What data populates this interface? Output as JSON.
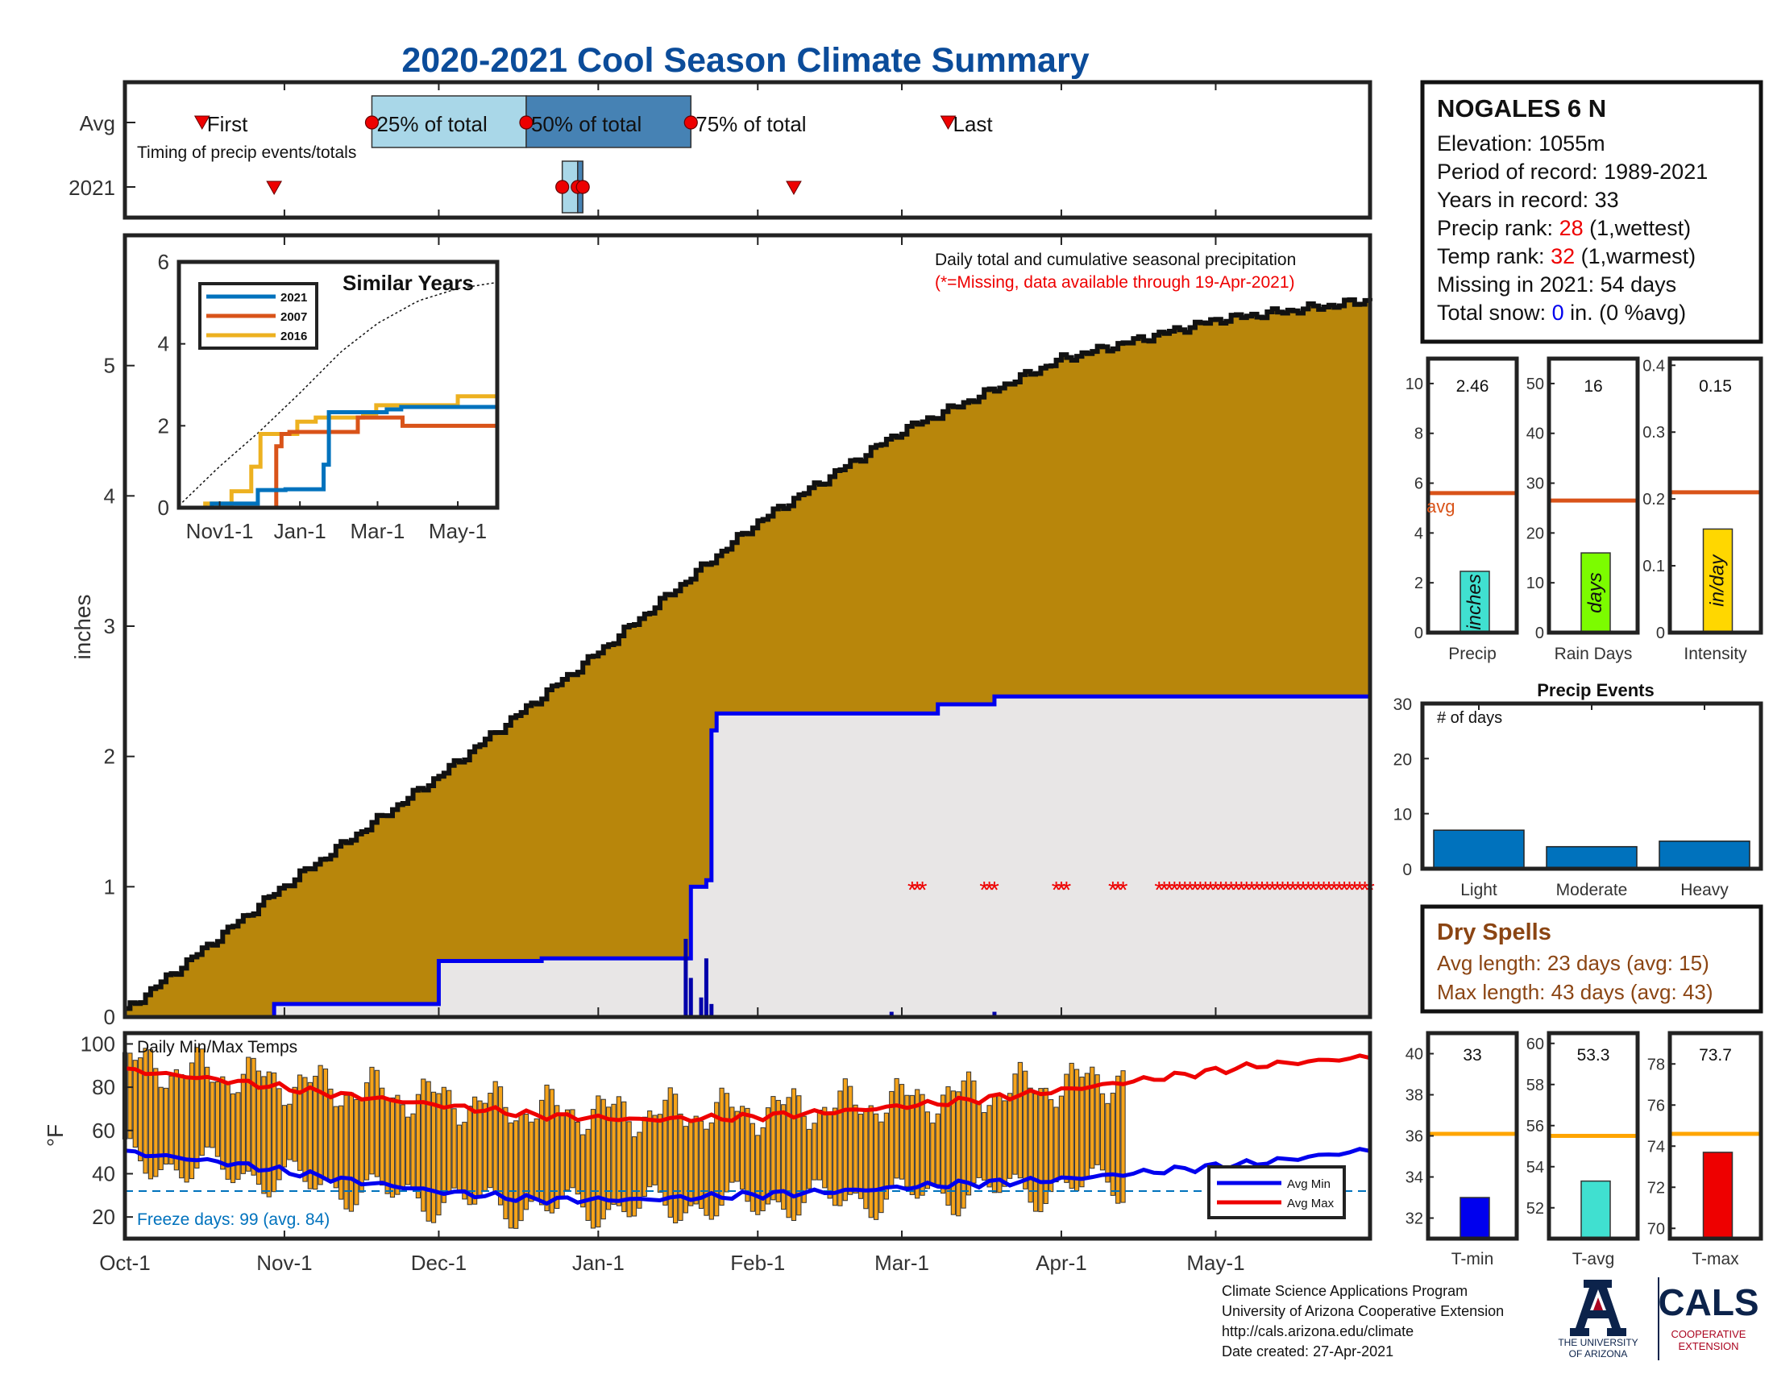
{
  "title": "2020-2021 Cool Season Climate Summary",
  "station": {
    "name": "NOGALES 6 N",
    "elevation_label": "Elevation: 1055m",
    "period_label": "Period of record: 1989-2021",
    "years_label": "Years in record: 33",
    "precip_rank_prefix": "Precip rank: ",
    "precip_rank_value": "28",
    "precip_rank_suffix": " (1,wettest)",
    "temp_rank_prefix": "Temp rank: ",
    "temp_rank_value": "32",
    "temp_rank_suffix": " (1,warmest)",
    "missing_label": "Missing in 2021: 54 days",
    "snow_prefix": "Total snow: ",
    "snow_value": "0",
    "snow_suffix": " in. (0 %avg)"
  },
  "timing": {
    "row_labels": [
      "Avg",
      "2021"
    ],
    "subtitle": "Timing of precip events/totals",
    "avg_first": "First",
    "avg_last": "Last",
    "pct25": "25% of total",
    "pct50": "50% of total",
    "pct75": "75% of total",
    "avg_markers_day": {
      "first": 15,
      "p25": 48,
      "p50": 78,
      "p75": 110,
      "last": 160
    },
    "y2021_markers_day": {
      "first": 29,
      "p25": 85,
      "p50": 88,
      "p75": 89,
      "last": 130
    }
  },
  "colors": {
    "cumulative_avg_fill": "#b8860b",
    "season_fill": "#e8e6e6",
    "precip_line": "#0000ee",
    "missing": "#ee0000",
    "temp_bar": "#f5a31a",
    "avg_min": "#0000ee",
    "avg_max": "#ee0000",
    "freeze": "#0072bd",
    "inset_2021": "#0072bd",
    "inset_2007": "#d95319",
    "inset_2016": "#edb120",
    "avg_line": "#d95319",
    "title_blue": "#0b4c9a",
    "dry_brown": "#8b4513"
  },
  "x_tick_labels": [
    "Oct-1",
    "Nov-1",
    "Dec-1",
    "Jan-1",
    "Feb-1",
    "Mar-1",
    "Apr-1",
    "May-1"
  ],
  "main_chart": {
    "ylabel": "inches",
    "annotation": "Daily total and cumulative seasonal precipitation",
    "missing_note": "(*=Missing, data available through 19-Apr-2021)",
    "y_ticks": [
      "0",
      "1",
      "2",
      "3",
      "4",
      "5"
    ]
  },
  "inset": {
    "title": "Similar Years",
    "legend": [
      "2021",
      "2007",
      "2016"
    ],
    "x_ticks": [
      "Nov1-1",
      "Jan-1",
      "Mar-1",
      "May-1"
    ],
    "y_ticks": [
      "0",
      "2",
      "4",
      "6"
    ]
  },
  "temp_chart": {
    "label": "Daily Min/Max Temps",
    "ylabel": "°F",
    "y_ticks": [
      "20",
      "40",
      "60",
      "80",
      "100"
    ],
    "freeze_label": "Freeze days: 99 (avg. 84)",
    "legend_min": "Avg Min",
    "legend_max": "Avg Max"
  },
  "bar_panels": [
    {
      "value_label": "2.46",
      "unit": "inches",
      "label": "Precip",
      "ticks": [
        "0",
        "2",
        "4",
        "6",
        "8",
        "10"
      ],
      "avg_text": "avg"
    },
    {
      "value_label": "16",
      "unit": "days",
      "label": "Rain Days",
      "ticks": [
        "0",
        "10",
        "20",
        "30",
        "40",
        "50"
      ]
    },
    {
      "value_label": "0.15",
      "unit": "in/day",
      "label": "Intensity",
      "ticks": [
        "0",
        "0.1",
        "0.2",
        "0.3",
        "0.4"
      ]
    }
  ],
  "precip_events": {
    "title": "Precip Events",
    "ylabel": "# of days",
    "ticks": [
      "0",
      "10",
      "20",
      "30"
    ],
    "categories": [
      "Light",
      "Moderate",
      "Heavy"
    ]
  },
  "dry_spells": {
    "title": "Dry Spells",
    "avg_label": "Avg length: 23 days (avg: 15)",
    "max_label": "Max length: 43 days (avg: 43)"
  },
  "temp_panels": [
    {
      "value_label": "33",
      "label": "T-min",
      "ticks": [
        "32",
        "34",
        "36",
        "38",
        "40"
      ]
    },
    {
      "value_label": "53.3",
      "label": "T-avg",
      "ticks": [
        "52",
        "54",
        "56",
        "58",
        "60"
      ]
    },
    {
      "value_label": "73.7",
      "label": "T-max",
      "ticks": [
        "70",
        "72",
        "74",
        "76",
        "78"
      ]
    }
  ],
  "footer": {
    "line1": "Climate Science Applications Program",
    "line2": "University of Arizona Cooperative Extension",
    "line3": "http://cals.arizona.edu/climate",
    "line4": " Date created: 27-Apr-2021"
  },
  "logos": {
    "ua_line1": "THE UNIVERSITY",
    "ua_line2": "OF ARIZONA",
    "cals": "CALS",
    "cals_line1": "COOPERATIVE",
    "cals_line2": "EXTENSION"
  },
  "chart_data": [
    {
      "type": "area",
      "name": "cumulative",
      "x_unit": "days since Oct-1",
      "y_unit": "inches",
      "ylim": [
        0,
        6
      ],
      "avg_cumulative": {
        "x": [
          0,
          30,
          61,
          92,
          123,
          151,
          182,
          212,
          242
        ],
        "y": [
          0.05,
          0.98,
          1.85,
          2.8,
          3.8,
          4.5,
          5.05,
          5.35,
          5.5
        ]
      },
      "season_2021_cumulative": {
        "x": [
          0,
          28,
          29,
          60,
          61,
          81,
          109,
          110,
          113,
          114,
          115,
          142,
          158,
          169,
          242
        ],
        "y": [
          0,
          0,
          0.1,
          0.1,
          0.43,
          0.45,
          0.45,
          1.0,
          1.05,
          2.2,
          2.33,
          2.33,
          2.4,
          2.46,
          2.46
        ]
      },
      "daily_precip": {
        "x": [
          109,
          110,
          112,
          113,
          114,
          149,
          169
        ],
        "y": [
          0.6,
          0.3,
          0.15,
          0.45,
          0.1,
          0.04,
          0.04
        ]
      },
      "missing_day_ranges": [
        [
          153,
          155
        ],
        [
          167,
          169
        ],
        [
          181,
          183
        ],
        [
          192,
          194
        ],
        [
          201,
          242
        ]
      ]
    },
    {
      "type": "line",
      "name": "similar_years",
      "x_unit": "days since Oct-1",
      "ylim": [
        0,
        6
      ],
      "series": [
        {
          "name": "2021",
          "x": [
            0,
            25,
            29,
            60,
            61,
            81,
            110,
            114,
            142,
            158,
            169,
            242
          ],
          "y": [
            0,
            0.1,
            0.1,
            0.43,
            0.43,
            0.45,
            1.05,
            2.33,
            2.33,
            2.4,
            2.46,
            2.46
          ]
        },
        {
          "name": "2007",
          "x": [
            0,
            70,
            74,
            78,
            84,
            135,
            136,
            165,
            170,
            242
          ],
          "y": [
            0,
            0,
            1.5,
            1.8,
            1.85,
            1.85,
            2.2,
            2.2,
            2.0,
            2.0
          ]
        },
        {
          "name": "2016",
          "x": [
            0,
            20,
            28,
            40,
            46,
            55,
            62,
            90,
            104,
            140,
            150,
            205,
            212,
            242
          ],
          "y": [
            0,
            0.1,
            0.1,
            0.4,
            0.4,
            1.0,
            1.8,
            2.1,
            2.2,
            2.3,
            2.5,
            2.5,
            2.72,
            2.72
          ]
        }
      ]
    },
    {
      "type": "bar",
      "name": "daily_temps",
      "x_unit": "days since Oct-1",
      "y_unit": "F",
      "ylim": [
        10,
        105
      ],
      "avg_min": {
        "x": [
          0,
          20,
          40,
          60,
          80,
          100,
          120,
          140,
          160,
          180,
          200,
          220,
          242
        ],
        "y": [
          50,
          45,
          38,
          32,
          28,
          28,
          30,
          32,
          35,
          37,
          41,
          45,
          51
        ]
      },
      "avg_max": {
        "x": [
          0,
          20,
          40,
          60,
          80,
          100,
          120,
          140,
          160,
          180,
          200,
          220,
          242
        ],
        "y": [
          88,
          83,
          77,
          72,
          67,
          65,
          66,
          69,
          73,
          78,
          84,
          90,
          94
        ]
      },
      "freeze_line": 32
    },
    {
      "type": "bar",
      "name": "precip",
      "categories": [
        "Precip"
      ],
      "values": [
        2.46
      ],
      "avg": 5.6,
      "ylim": [
        0,
        11
      ]
    },
    {
      "type": "bar",
      "name": "rain_days",
      "categories": [
        "Rain Days"
      ],
      "values": [
        16
      ],
      "avg": 26.5,
      "ylim": [
        0,
        55
      ]
    },
    {
      "type": "bar",
      "name": "intensity",
      "categories": [
        "Intensity"
      ],
      "values": [
        0.155
      ],
      "avg": 0.21,
      "ylim": [
        0,
        0.41
      ]
    },
    {
      "type": "bar",
      "name": "precip_events",
      "categories": [
        "Light",
        "Moderate",
        "Heavy"
      ],
      "values": [
        7,
        4,
        5
      ],
      "ylim": [
        0,
        30
      ]
    },
    {
      "type": "bar",
      "name": "t_min",
      "categories": [
        "T-min"
      ],
      "values": [
        33
      ],
      "avg": 36.1,
      "ylim": [
        31,
        41
      ]
    },
    {
      "type": "bar",
      "name": "t_avg",
      "categories": [
        "T-avg"
      ],
      "values": [
        53.3
      ],
      "avg": 55.5,
      "ylim": [
        50.5,
        60.5
      ]
    },
    {
      "type": "bar",
      "name": "t_max",
      "categories": [
        "T-max"
      ],
      "values": [
        73.7
      ],
      "avg": 74.6,
      "ylim": [
        69.5,
        79.5
      ]
    }
  ]
}
